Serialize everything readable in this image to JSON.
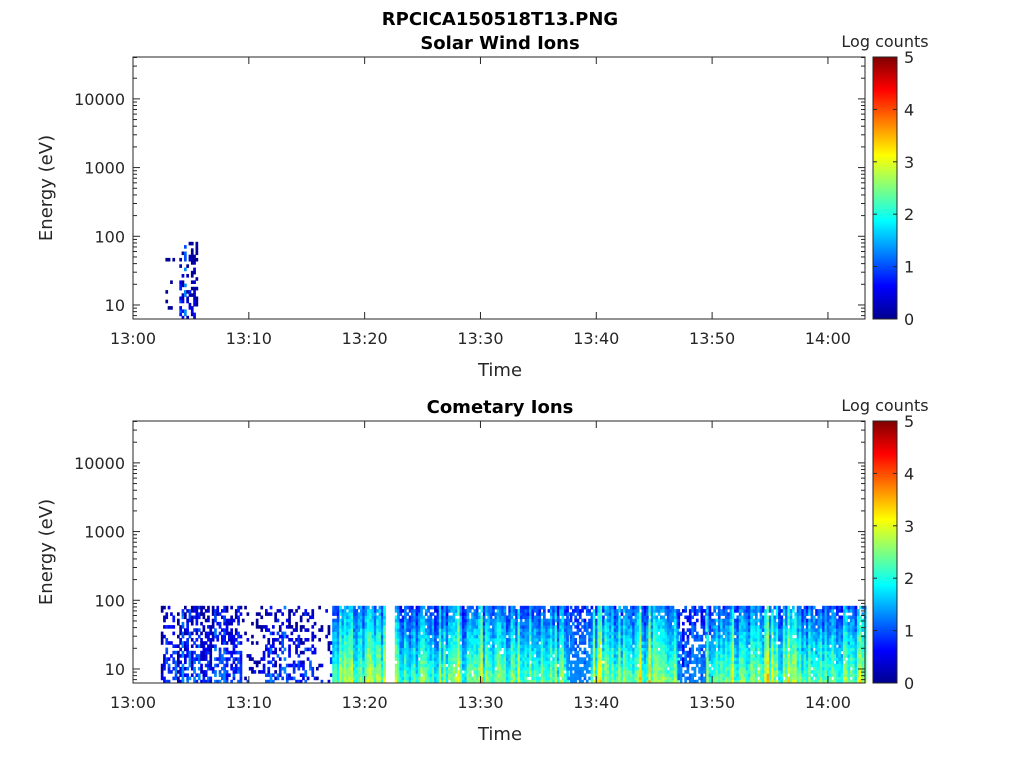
{
  "figure_title": "RPCICA150518T13.PNG",
  "chart_data": [
    {
      "type": "heatmap",
      "title": "Solar Wind Ions",
      "xlabel": "Time",
      "ylabel": "Energy (eV)",
      "colorbar_label": "Log counts",
      "x_ticks": [
        "13:00",
        "13:10",
        "13:20",
        "13:30",
        "13:40",
        "13:50",
        "14:00"
      ],
      "x_range_minutes": [
        0,
        63.2
      ],
      "y_scale": "log",
      "y_ticks": [
        "10",
        "100",
        "1000",
        "10000"
      ],
      "y_range": [
        6.25,
        40700
      ],
      "data_max_energy": 83,
      "color_range": [
        0,
        5
      ],
      "color_ticks": [
        "0",
        "1",
        "2",
        "3",
        "4",
        "5"
      ],
      "segments": [
        {
          "start_min": 2.4,
          "end_min": 3.6,
          "level": 0.4,
          "coverage": 0.12
        },
        {
          "start_min": 4.0,
          "end_min": 5.6,
          "level": 0.7,
          "coverage": 0.5
        }
      ]
    },
    {
      "type": "heatmap",
      "title": "Cometary Ions",
      "xlabel": "Time",
      "ylabel": "Energy (eV)",
      "colorbar_label": "Log counts",
      "x_ticks": [
        "13:00",
        "13:10",
        "13:20",
        "13:30",
        "13:40",
        "13:50",
        "14:00"
      ],
      "x_range_minutes": [
        0,
        63.2
      ],
      "y_scale": "log",
      "y_ticks": [
        "10",
        "100",
        "1000",
        "10000"
      ],
      "y_range": [
        6.25,
        40700
      ],
      "data_max_energy": 83,
      "color_range": [
        0,
        5
      ],
      "color_ticks": [
        "0",
        "1",
        "2",
        "3",
        "4",
        "5"
      ],
      "segments": [
        {
          "start_min": 2.4,
          "end_min": 4.0,
          "level": 0.8,
          "coverage": 0.5
        },
        {
          "start_min": 4.0,
          "end_min": 9.4,
          "level": 1.0,
          "coverage": 0.65
        },
        {
          "start_min": 9.4,
          "end_min": 11.0,
          "level": 0.5,
          "coverage": 0.2
        },
        {
          "start_min": 11.0,
          "end_min": 13.2,
          "level": 0.9,
          "coverage": 0.5
        },
        {
          "start_min": 13.2,
          "end_min": 15.6,
          "level": 0.9,
          "coverage": 0.5
        },
        {
          "start_min": 15.6,
          "end_min": 17.2,
          "level": 0.5,
          "coverage": 0.15
        },
        {
          "start_min": 17.2,
          "end_min": 21.7,
          "level": 2.5,
          "coverage": 1.0
        },
        {
          "start_min": 22.6,
          "end_min": 37.5,
          "level": 2.3,
          "coverage": 0.97
        },
        {
          "start_min": 37.5,
          "end_min": 39.5,
          "level": 1.4,
          "coverage": 0.8
        },
        {
          "start_min": 39.5,
          "end_min": 47.0,
          "level": 2.4,
          "coverage": 0.98
        },
        {
          "start_min": 47.0,
          "end_min": 49.5,
          "level": 1.3,
          "coverage": 0.75
        },
        {
          "start_min": 49.5,
          "end_min": 63.2,
          "level": 2.4,
          "coverage": 0.97
        }
      ]
    }
  ]
}
